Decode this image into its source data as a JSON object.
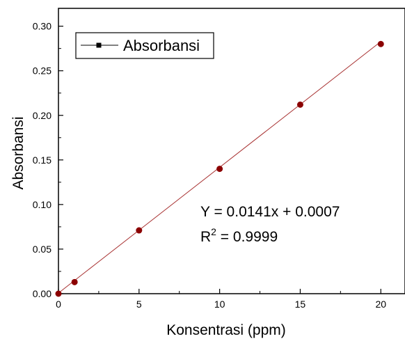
{
  "chart_data": {
    "type": "scatter",
    "title": "",
    "xlabel": "Konsentrasi (ppm)",
    "ylabel": "Absorbansi",
    "xlim": [
      0,
      21.5
    ],
    "ylim": [
      0,
      0.32
    ],
    "x_ticks": [
      0,
      5,
      10,
      15,
      20
    ],
    "x_tick_labels": [
      "0",
      "5",
      "10",
      "15",
      "20"
    ],
    "y_ticks": [
      0.0,
      0.05,
      0.1,
      0.15,
      0.2,
      0.25,
      0.3
    ],
    "y_tick_labels": [
      "0.00",
      "0.05",
      "0.10",
      "0.15",
      "0.20",
      "0.25",
      "0.30"
    ],
    "grid": false,
    "legend_position": "top-left",
    "series": [
      {
        "name": "Absorbansi",
        "x": [
          0,
          1,
          5,
          10,
          15,
          20
        ],
        "y": [
          0.0,
          0.013,
          0.071,
          0.14,
          0.212,
          0.28
        ],
        "marker_color": "#8b0000",
        "legend_color": "#000000"
      }
    ],
    "fit_line": {
      "slope": 0.0141,
      "intercept": 0.0007,
      "x_range": [
        0,
        20
      ],
      "color": "#a83232"
    },
    "annotation": {
      "equation": "Y = 0.0141x + 0.0007",
      "r2_prefix": "R",
      "r2_superscript": "2",
      "r2_suffix": " = 0.9999"
    }
  }
}
